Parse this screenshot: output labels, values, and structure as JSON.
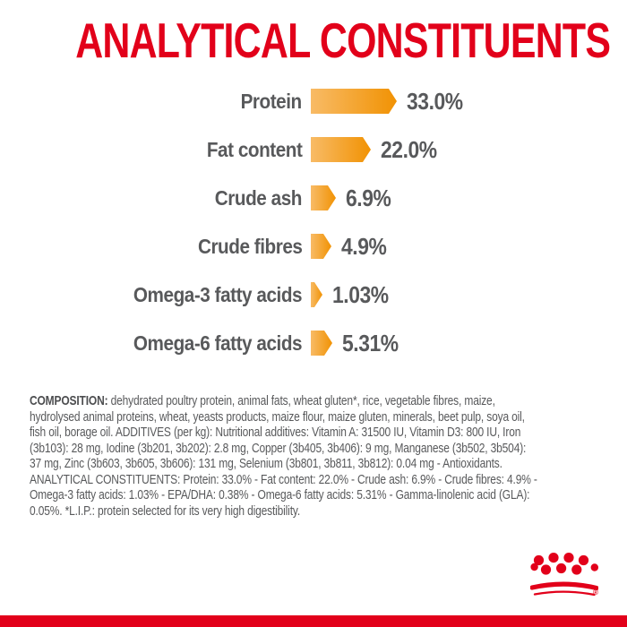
{
  "title": "ANALYTICAL CONSTITUENTS",
  "colors": {
    "red": "#E2001A",
    "bar_orange_light": "#F8BB66",
    "bar_orange_dark": "#F19203",
    "text_gray": "#58595B"
  },
  "chart_data": {
    "type": "bar",
    "orientation": "horizontal",
    "title": "ANALYTICAL CONSTITUENTS",
    "unit": "%",
    "categories": [
      "Protein",
      "Fat content",
      "Crude ash",
      "Crude fibres",
      "Omega-3 fatty acids",
      "Omega-6 fatty acids"
    ],
    "values": [
      33.0,
      22.0,
      6.9,
      4.9,
      1.03,
      5.31
    ],
    "value_labels": [
      "33.0%",
      "22.0%",
      "6.9%",
      "4.9%",
      "1.03%",
      "5.31%"
    ],
    "bar_style": "orange gradient arrow pointing right, value label after tip",
    "axis": "none, grid off, labels right-aligned left of bars"
  },
  "composition": {
    "label": "COMPOSITION:",
    "text": " dehydrated poultry protein, animal fats, wheat gluten*, rice, vegetable fibres, maize,\nhydrolysed animal proteins, wheat, yeasts products, maize flour, maize gluten, minerals, beet pulp, soya oil,\nfish oil, borage oil. ADDITIVES (per kg): Nutritional additives: Vitamin A: 31500 IU, Vitamin D3: 800 IU, Iron\n(3b103): 28 mg, Iodine (3b201, 3b202): 2.8 mg, Copper (3b405, 3b406): 9 mg, Manganese (3b502, 3b504):\n37 mg, Zinc (3b603, 3b605, 3b606): 131 mg, Selenium (3b801, 3b811, 3b812): 0.04 mg - Antioxidants.\nANALYTICAL CONSTITUENTS: Protein: 33.0% - Fat content: 22.0% - Crude ash: 6.9% - Crude fibres: 4.9% -\nOmega-3 fatty acids: 1.03% - EPA/DHA: 0.38% - Omega-6 fatty acids: 5.31% - Gamma-linolenic acid (GLA):\n0.05%. *L.I.P.: protein selected for its very high digestibility."
  },
  "logo": {
    "name": "royal-canin-crown",
    "registered": "®"
  }
}
